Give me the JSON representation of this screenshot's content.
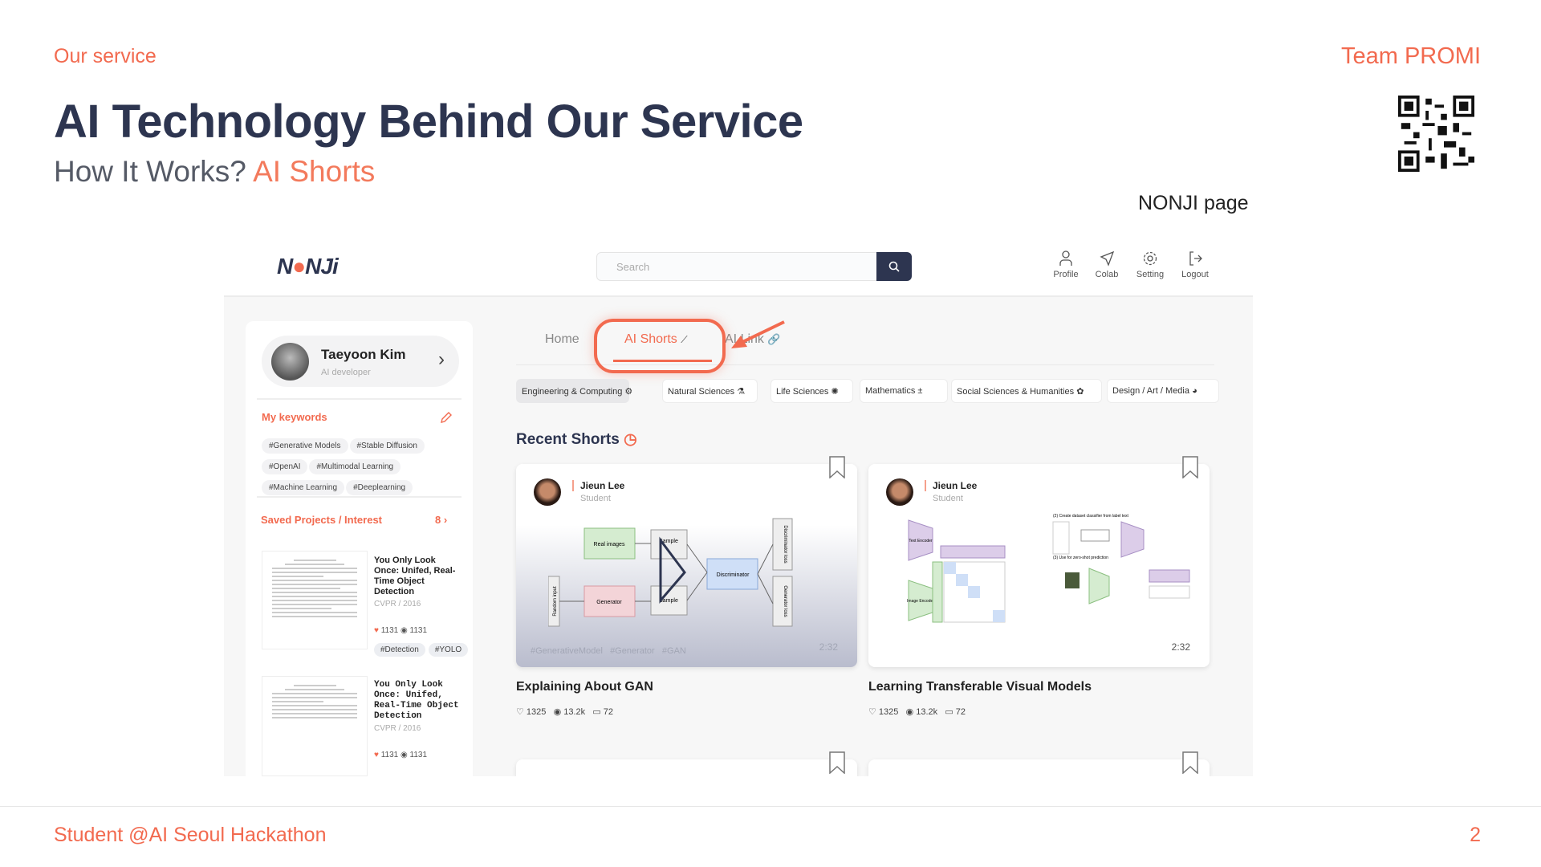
{
  "slide": {
    "section": "Our service",
    "team": "Team PROMI",
    "title": "AI Technology Behind Our Service",
    "subtitle_prefix": "How It Works?",
    "subtitle_highlight": "AI Shorts",
    "caption": "NONJI page",
    "footer": "Student @AI Seoul Hackathon",
    "page_number": "2",
    "accent": "#f26a4f"
  },
  "app": {
    "logo": "NONJI",
    "search": {
      "placeholder": "Search"
    },
    "nav": [
      {
        "label": "Profile",
        "icon": "user-icon"
      },
      {
        "label": "Colab",
        "icon": "send-icon"
      },
      {
        "label": "Setting",
        "icon": "gear-icon"
      },
      {
        "label": "Logout",
        "icon": "logout-icon"
      }
    ],
    "profile": {
      "name": "Taeyoon Kim",
      "role": "AI developer"
    },
    "keywords": {
      "title": "My keywords",
      "items": [
        "#Generative Models",
        "#Stable Diffusion",
        "#OpenAI",
        "#Multimodal Learning",
        "#Machine Learning",
        "#Deeplearning"
      ]
    },
    "saved": {
      "title": "Saved Projects / Interest",
      "count": "8",
      "items": [
        {
          "title": "You Only Look Once: Unifed, Real-Time Object Detection",
          "venue": "CVPR / 2016",
          "likes": "1131",
          "views": "1131",
          "tags": [
            "#Detection",
            "#YOLO"
          ]
        },
        {
          "title": "You Only Look Once: Unifed, Real-Time Object Detection",
          "venue": "CVPR / 2016",
          "likes": "1131",
          "views": "1131"
        }
      ]
    },
    "tabs": [
      {
        "label": "Home"
      },
      {
        "label": "AI Shorts",
        "active": true
      },
      {
        "label": "AI Link"
      }
    ],
    "categories": [
      {
        "label": "Engineering & Computing",
        "selected": true
      },
      {
        "label": "Natural Sciences"
      },
      {
        "label": "Life Sciences"
      },
      {
        "label": "Mathematics"
      },
      {
        "label": "Social Sciences & Humanities"
      },
      {
        "label": "Design / Art / Media"
      }
    ],
    "recent_title": "Recent Shorts",
    "shorts": [
      {
        "author": "Jieun Lee",
        "role": "Student",
        "title": "Explaining About GAN",
        "duration": "2:32",
        "tags": [
          "#GenerativeModel",
          "#Generator",
          "#GAN"
        ],
        "likes": "1325",
        "views": "13.2k",
        "comments": "72",
        "diagram": [
          "Real images",
          "Sample",
          "Generator",
          "Sample",
          "Discriminator",
          "Random input",
          "Discriminator loss",
          "Generator loss"
        ]
      },
      {
        "author": "Jieun Lee",
        "role": "Student",
        "title": "Learning Transferable Visual Models",
        "duration": "2:32",
        "likes": "1325",
        "views": "13.2k",
        "comments": "72",
        "diagram": [
          "Text Encoder",
          "Image Encoder",
          "(2) Create dataset classifier from label text",
          "(3) Use for zero-shot prediction"
        ]
      }
    ]
  }
}
